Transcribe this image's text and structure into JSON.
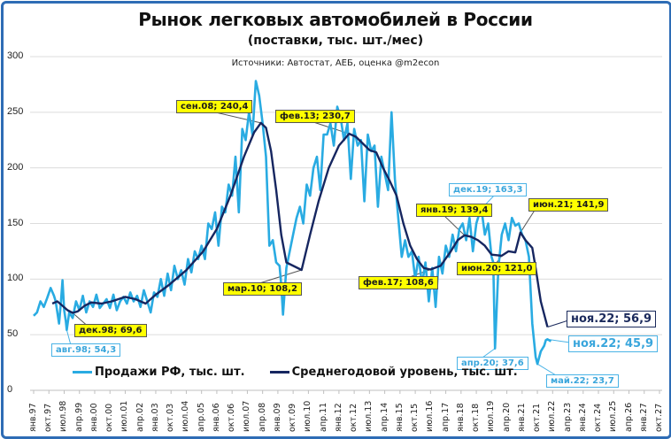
{
  "header": {
    "title": "Рынок легковых автомобилей в России",
    "subtitle": "(поставки, тыс. шт./мес)",
    "source": "Источники: Автостат, АЕБ, оценка @m2econ"
  },
  "colors": {
    "frame": "#2e6cb5",
    "sales": "#29abe2",
    "average": "#162660",
    "callout_yellow": "#ffff00",
    "grid": "#d9d9d9"
  },
  "legend": {
    "sales_label": "Продажи РФ, тыс. шт.",
    "average_label": "Среднегодовой уровень, тыс. шт."
  },
  "callouts": {
    "dec98": "дек.98;  69,6",
    "aug98": "авг.98; 54,3",
    "sep08": "сен.08;  240,4",
    "mar10": "мар.10;  108,2",
    "feb13": "фев.13;  230,7",
    "feb17": "фев.17;  108,6",
    "jan19": "янв.19;  139,4",
    "dec19": "дек.19; 163,3",
    "jun20": "июн.20;  121,0",
    "apr20": "апр.20; 37,6",
    "jun21": "июн.21;  141,9",
    "nov22_avg": "ноя.22;  56,9",
    "nov22_sales": "ноя.22; 45,9",
    "may22": "май.22; 23,7"
  },
  "chart_data": {
    "type": "line",
    "title": "Рынок легковых автомобилей в России",
    "subtitle": "(поставки, тыс. шт./мес)",
    "xlabel": "",
    "ylabel": "",
    "ylim": [
      0,
      300
    ],
    "yticks": [
      0,
      50,
      100,
      150,
      200,
      250,
      300
    ],
    "grid": true,
    "legend_position": "bottom",
    "xticks": [
      "янв.97",
      "окт.97",
      "июл.98",
      "апр.99",
      "янв.00",
      "окт.00",
      "июл.01",
      "апр.02",
      "янв.03",
      "окт.03",
      "июл.04",
      "апр.05",
      "янв.06",
      "окт.06",
      "июл.07",
      "апр.08",
      "янв.09",
      "окт.09",
      "июл.10",
      "апр.11",
      "янв.12",
      "окт.12",
      "июл.13",
      "апр.14",
      "янв.15",
      "окт.15",
      "июл.16",
      "апр.17",
      "янв.18",
      "окт.18",
      "июл.19",
      "апр.20",
      "янв.21",
      "окт.21",
      "июл.22",
      "апр.23",
      "янв.24",
      "окт.24",
      "июл.25",
      "апр.26",
      "янв.27",
      "окт.27"
    ],
    "series": [
      {
        "name": "Продажи РФ, тыс. шт.",
        "color": "#29abe2",
        "points_month_index_value": [
          [
            0,
            67
          ],
          [
            2,
            70
          ],
          [
            4,
            80
          ],
          [
            6,
            75
          ],
          [
            8,
            83
          ],
          [
            10,
            92
          ],
          [
            12,
            85
          ],
          [
            13,
            80
          ],
          [
            15,
            60
          ],
          [
            16,
            78
          ],
          [
            17,
            99
          ],
          [
            18,
            72
          ],
          [
            19,
            62
          ],
          [
            19.5,
            54.3
          ],
          [
            21,
            70
          ],
          [
            23,
            65
          ],
          [
            25,
            80
          ],
          [
            27,
            72
          ],
          [
            29,
            85
          ],
          [
            31,
            70
          ],
          [
            33,
            80
          ],
          [
            35,
            75
          ],
          [
            37,
            86
          ],
          [
            39,
            74
          ],
          [
            41,
            78
          ],
          [
            43,
            82
          ],
          [
            45,
            74
          ],
          [
            47,
            86
          ],
          [
            49,
            72
          ],
          [
            51,
            80
          ],
          [
            53,
            84
          ],
          [
            55,
            78
          ],
          [
            57,
            88
          ],
          [
            59,
            80
          ],
          [
            61,
            85
          ],
          [
            63,
            75
          ],
          [
            65,
            90
          ],
          [
            67,
            80
          ],
          [
            69,
            70
          ],
          [
            71,
            88
          ],
          [
            73,
            84
          ],
          [
            75,
            100
          ],
          [
            77,
            85
          ],
          [
            79,
            105
          ],
          [
            81,
            90
          ],
          [
            83,
            112
          ],
          [
            85,
            100
          ],
          [
            87,
            108
          ],
          [
            89,
            95
          ],
          [
            91,
            118
          ],
          [
            93,
            106
          ],
          [
            95,
            125
          ],
          [
            97,
            118
          ],
          [
            99,
            130
          ],
          [
            101,
            118
          ],
          [
            103,
            150
          ],
          [
            105,
            145
          ],
          [
            107,
            160
          ],
          [
            109,
            130
          ],
          [
            111,
            165
          ],
          [
            113,
            160
          ],
          [
            115,
            185
          ],
          [
            117,
            175
          ],
          [
            119,
            210
          ],
          [
            121,
            160
          ],
          [
            123,
            235
          ],
          [
            125,
            225
          ],
          [
            127,
            250
          ],
          [
            129,
            230
          ],
          [
            131,
            278
          ],
          [
            133,
            265
          ],
          [
            135,
            240
          ],
          [
            137,
            210
          ],
          [
            139,
            130
          ],
          [
            141,
            135
          ],
          [
            143,
            115
          ],
          [
            145,
            112
          ],
          [
            146,
            95
          ],
          [
            147,
            68
          ],
          [
            149,
            110
          ],
          [
            151,
            125
          ],
          [
            153,
            140
          ],
          [
            155,
            155
          ],
          [
            157,
            165
          ],
          [
            159,
            150
          ],
          [
            161,
            185
          ],
          [
            163,
            175
          ],
          [
            165,
            200
          ],
          [
            167,
            210
          ],
          [
            169,
            180
          ],
          [
            171,
            230
          ],
          [
            173,
            230
          ],
          [
            175,
            240
          ],
          [
            177,
            220
          ],
          [
            179,
            255
          ],
          [
            181,
            245
          ],
          [
            183,
            225
          ],
          [
            185,
            240
          ],
          [
            187,
            190
          ],
          [
            189,
            235
          ],
          [
            191,
            220
          ],
          [
            193,
            225
          ],
          [
            195,
            170
          ],
          [
            197,
            230
          ],
          [
            199,
            215
          ],
          [
            201,
            220
          ],
          [
            203,
            165
          ],
          [
            205,
            210
          ],
          [
            207,
            195
          ],
          [
            209,
            180
          ],
          [
            211,
            250
          ],
          [
            213,
            190
          ],
          [
            215,
            155
          ],
          [
            217,
            120
          ],
          [
            219,
            135
          ],
          [
            221,
            120
          ],
          [
            223,
            125
          ],
          [
            225,
            100
          ],
          [
            227,
            120
          ],
          [
            229,
            95
          ],
          [
            231,
            115
          ],
          [
            233,
            80
          ],
          [
            235,
            110
          ],
          [
            237,
            75
          ],
          [
            239,
            120
          ],
          [
            241,
            105
          ],
          [
            243,
            130
          ],
          [
            245,
            120
          ],
          [
            247,
            140
          ],
          [
            249,
            125
          ],
          [
            251,
            145
          ],
          [
            253,
            150
          ],
          [
            255,
            135
          ],
          [
            257,
            155
          ],
          [
            259,
            125
          ],
          [
            261,
            150
          ],
          [
            263,
            160
          ],
          [
            264,
            163.3
          ],
          [
            266,
            140
          ],
          [
            268,
            150
          ],
          [
            270,
            120
          ],
          [
            271,
            115
          ],
          [
            272,
            37.6
          ],
          [
            274,
            110
          ],
          [
            276,
            140
          ],
          [
            278,
            150
          ],
          [
            280,
            135
          ],
          [
            282,
            155
          ],
          [
            284,
            148
          ],
          [
            286,
            150
          ],
          [
            288,
            140
          ],
          [
            290,
            135
          ],
          [
            292,
            120
          ],
          [
            294,
            60
          ],
          [
            296,
            30
          ],
          [
            297,
            23.7
          ],
          [
            299,
            35
          ],
          [
            301,
            40
          ],
          [
            302,
            45
          ],
          [
            303,
            45.9
          ],
          [
            305,
            44
          ]
        ]
      },
      {
        "name": "Среднегодовой уровень, тыс. шт.",
        "color": "#162660",
        "points_month_index_value": [
          [
            11,
            78
          ],
          [
            14,
            80
          ],
          [
            17,
            76
          ],
          [
            20,
            72
          ],
          [
            23,
            69.6
          ],
          [
            26,
            71
          ],
          [
            30,
            76
          ],
          [
            34,
            79
          ],
          [
            40,
            78
          ],
          [
            46,
            80
          ],
          [
            54,
            84
          ],
          [
            60,
            82
          ],
          [
            66,
            78
          ],
          [
            72,
            86
          ],
          [
            80,
            95
          ],
          [
            90,
            108
          ],
          [
            100,
            125
          ],
          [
            108,
            145
          ],
          [
            116,
            175
          ],
          [
            124,
            210
          ],
          [
            130,
            232
          ],
          [
            134,
            240.4
          ],
          [
            137,
            236
          ],
          [
            140,
            215
          ],
          [
            143,
            180
          ],
          [
            146,
            140
          ],
          [
            149,
            115
          ],
          [
            158,
            108.2
          ],
          [
            163,
            140
          ],
          [
            168,
            170
          ],
          [
            174,
            200
          ],
          [
            180,
            220
          ],
          [
            186,
            230.7
          ],
          [
            190,
            228
          ],
          [
            194,
            222
          ],
          [
            198,
            216
          ],
          [
            202,
            214
          ],
          [
            206,
            200
          ],
          [
            210,
            188
          ],
          [
            214,
            175
          ],
          [
            218,
            150
          ],
          [
            222,
            130
          ],
          [
            226,
            118
          ],
          [
            230,
            110
          ],
          [
            234,
            108.6
          ],
          [
            240,
            112
          ],
          [
            246,
            125
          ],
          [
            250,
            135
          ],
          [
            254,
            139.4
          ],
          [
            258,
            138
          ],
          [
            262,
            135
          ],
          [
            266,
            130
          ],
          [
            270,
            122
          ],
          [
            276,
            121
          ],
          [
            280,
            125
          ],
          [
            284,
            124
          ],
          [
            287,
            141.9
          ],
          [
            290,
            135
          ],
          [
            294,
            128
          ],
          [
            296,
            110
          ],
          [
            299,
            80
          ],
          [
            303,
            56.9
          ]
        ]
      }
    ],
    "annotations": [
      {
        "label": "дек.98; 69,6",
        "series": "average",
        "x": "дек.98",
        "y": 69.6
      },
      {
        "label": "авг.98; 54,3",
        "series": "sales",
        "x": "авг.98",
        "y": 54.3
      },
      {
        "label": "сен.08; 240,4",
        "series": "average",
        "x": "сен.08",
        "y": 240.4
      },
      {
        "label": "мар.10; 108,2",
        "series": "average",
        "x": "мар.10",
        "y": 108.2
      },
      {
        "label": "фев.13; 230,7",
        "series": "average",
        "x": "фев.13",
        "y": 230.7
      },
      {
        "label": "фев.17; 108,6",
        "series": "average",
        "x": "фев.17",
        "y": 108.6
      },
      {
        "label": "янв.19; 139,4",
        "series": "average",
        "x": "янв.19",
        "y": 139.4
      },
      {
        "label": "дек.19; 163,3",
        "series": "sales",
        "x": "дек.19",
        "y": 163.3
      },
      {
        "label": "июн.20; 121,0",
        "series": "average",
        "x": "июн.20",
        "y": 121.0
      },
      {
        "label": "апр.20; 37,6",
        "series": "sales",
        "x": "апр.20",
        "y": 37.6
      },
      {
        "label": "июн.21; 141,9",
        "series": "average",
        "x": "июн.21",
        "y": 141.9
      },
      {
        "label": "май.22; 23,7",
        "series": "sales",
        "x": "май.22",
        "y": 23.7
      },
      {
        "label": "ноя.22; 56,9",
        "series": "average",
        "x": "ноя.22",
        "y": 56.9
      },
      {
        "label": "ноя.22; 45,9",
        "series": "sales",
        "x": "ноя.22",
        "y": 45.9
      }
    ]
  }
}
